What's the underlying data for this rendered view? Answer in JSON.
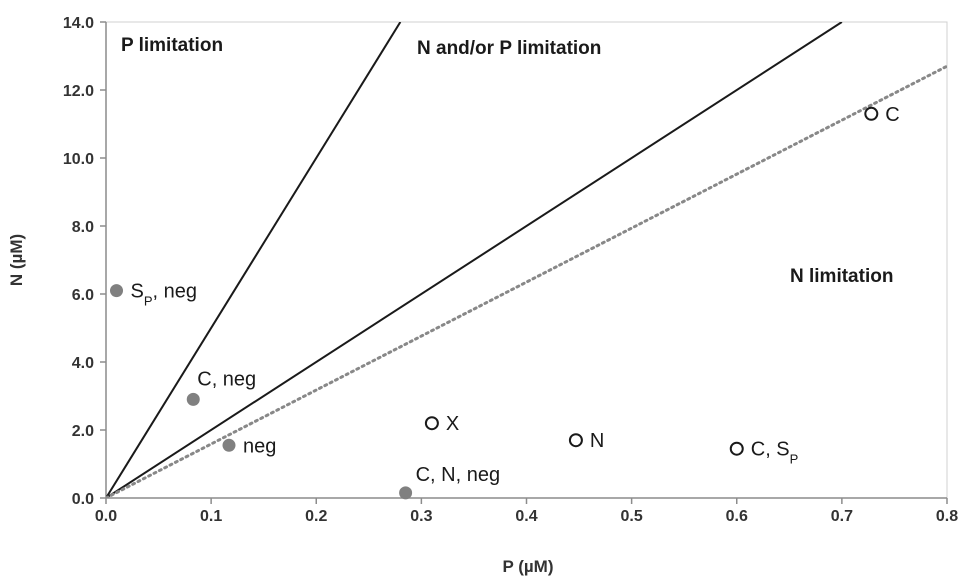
{
  "chart_data": {
    "type": "scatter",
    "xlabel": "P (µM)",
    "ylabel": "N (µM)",
    "xlim": [
      0.0,
      0.8
    ],
    "ylim": [
      0.0,
      14.0
    ],
    "x_ticks": [
      0.0,
      0.1,
      0.2,
      0.3,
      0.4,
      0.5,
      0.6,
      0.7,
      0.8
    ],
    "y_ticks": [
      0.0,
      2.0,
      4.0,
      6.0,
      8.0,
      10.0,
      12.0,
      14.0
    ],
    "x_tick_labels": [
      "0.0",
      "0.1",
      "0.2",
      "0.3",
      "0.4",
      "0.5",
      "0.6",
      "0.7",
      "0.8"
    ],
    "y_tick_labels": [
      "0.0",
      "2.0",
      "4.0",
      "6.0",
      "8.0",
      "10.0",
      "12.0",
      "14.0"
    ],
    "grid": false,
    "regions": [
      {
        "label": "P limitation"
      },
      {
        "label": "N and/or P limitation"
      },
      {
        "label": "N limitation"
      }
    ],
    "reference_lines": [
      {
        "style": "solid",
        "color": "#1a1a1a",
        "x": [
          0.0,
          0.28
        ],
        "y": [
          0.0,
          14.0
        ]
      },
      {
        "style": "solid",
        "color": "#1a1a1a",
        "x": [
          0.0,
          0.7
        ],
        "y": [
          0.0,
          14.0
        ]
      },
      {
        "style": "dotted",
        "color": "#888888",
        "x": [
          0.0,
          0.8
        ],
        "y": [
          0.0,
          12.7
        ]
      }
    ],
    "series": [
      {
        "marker": "filled",
        "color": "#808080",
        "points": [
          {
            "x": 0.01,
            "y": 6.1,
            "label": "S",
            "sub": "P",
            "suffix": ", neg"
          },
          {
            "x": 0.083,
            "y": 2.9,
            "label": "C, neg"
          },
          {
            "x": 0.117,
            "y": 1.55,
            "label": "neg"
          },
          {
            "x": 0.285,
            "y": 0.15,
            "label": "C, N, neg"
          }
        ]
      },
      {
        "marker": "open",
        "color": "#1a1a1a",
        "points": [
          {
            "x": 0.31,
            "y": 2.2,
            "label": "X"
          },
          {
            "x": 0.447,
            "y": 1.7,
            "label": "N"
          },
          {
            "x": 0.6,
            "y": 1.45,
            "label": "C, ",
            "sub": "P",
            "prefix_s": true
          },
          {
            "x": 0.728,
            "y": 11.3,
            "label": "C"
          }
        ]
      }
    ]
  }
}
